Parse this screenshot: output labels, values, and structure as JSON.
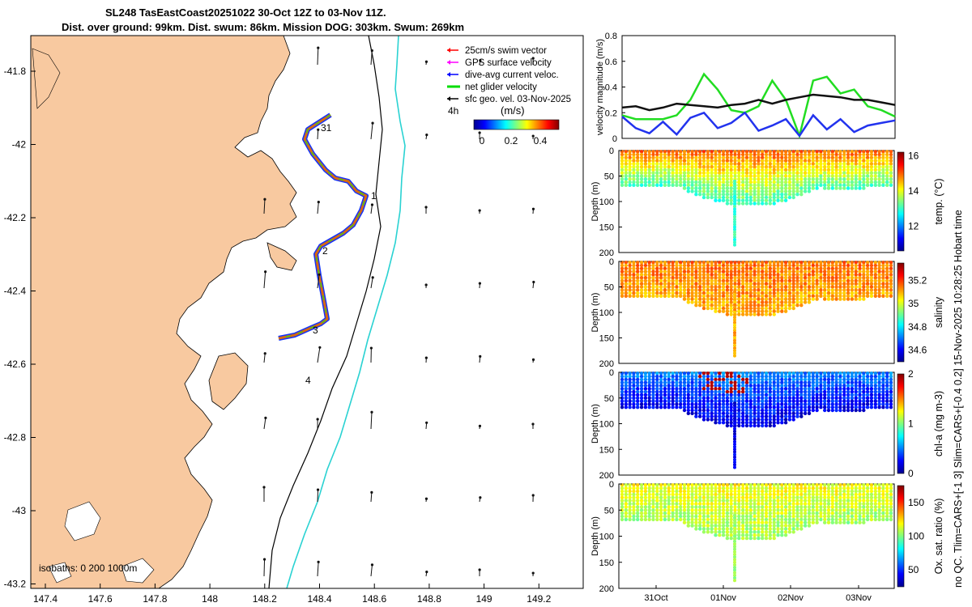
{
  "title_line1": "SL248 TasEastCoast20251022 30-Oct 12Z to 03-Nov 11Z.",
  "title_line2": "Dist. over ground: 99km. Dist. swum: 86km. Mission DOG: 303km. Swum: 269km",
  "side_caption": "no QC. Tlim=CARS+[-1 3] Slim=CARS+[-0.4 0.2] 15-Nov-2025 10:28:25 Hobart time",
  "colors": {
    "land": "#f8c9a0",
    "isobath_0": "#000000",
    "isobath_200": "#000000",
    "isobath_1000": "#2ad2d2",
    "track": "#0033ff",
    "net": "#11dd11"
  },
  "map": {
    "legend": [
      {
        "label": "25cm/s swim vector",
        "color": "#ff0000",
        "kind": "arrow"
      },
      {
        "label": "GPS surface velocity",
        "color": "#ff00ff",
        "kind": "arrow"
      },
      {
        "label": "dive-avg current veloc.",
        "color": "#0000ff",
        "kind": "arrow"
      },
      {
        "label": "net glider velocity",
        "color": "#00dd00",
        "kind": "line"
      },
      {
        "label": "sfc geo. vel. 03-Nov-2025",
        "color": "#000000",
        "kind": "arrow"
      }
    ],
    "interval_label": "4h",
    "colorbar_unit": "(m/s)",
    "colorbar_ticks": [
      "0",
      "0.2",
      "0.4"
    ],
    "day_labels": [
      "31",
      "1",
      "2",
      "3",
      "4"
    ],
    "isobath_label": "isobaths: 0   200  1000m",
    "x_ticks": [
      "147.4",
      "147.6",
      "147.8",
      "148",
      "148.2",
      "148.4",
      "148.6",
      "148.8",
      "149",
      "149.2"
    ],
    "y_ticks": [
      "-41.8",
      "-42",
      "-42.2",
      "-42.4",
      "-42.6",
      "-42.8",
      "-43",
      "-43.2"
    ]
  },
  "chart_data": [
    {
      "type": "line",
      "title": "",
      "ylabel": "velocity magnitude (m/s)",
      "ylim": [
        0,
        0.8
      ],
      "yticks": [
        "0",
        "0.2",
        "0.4",
        "0.6",
        "0.8"
      ],
      "x": [
        0,
        0.05,
        0.1,
        0.15,
        0.2,
        0.25,
        0.3,
        0.35,
        0.4,
        0.45,
        0.5,
        0.55,
        0.6,
        0.65,
        0.7,
        0.75,
        0.8,
        0.85,
        0.9,
        0.95,
        1.0
      ],
      "series": [
        {
          "name": "net glider velocity",
          "color": "#22dd22",
          "values": [
            0.18,
            0.15,
            0.15,
            0.15,
            0.18,
            0.3,
            0.5,
            0.38,
            0.22,
            0.2,
            0.25,
            0.45,
            0.3,
            0.02,
            0.45,
            0.48,
            0.35,
            0.38,
            0.25,
            0.22,
            0.17
          ]
        },
        {
          "name": "dive-avg current",
          "color": "#2233ee",
          "values": [
            0.17,
            0.08,
            0.04,
            0.13,
            0.03,
            0.16,
            0.2,
            0.08,
            0.12,
            0.2,
            0.06,
            0.1,
            0.15,
            0.02,
            0.18,
            0.07,
            0.15,
            0.05,
            0.1,
            0.12,
            0.14
          ]
        },
        {
          "name": "sfc geo. vel.",
          "color": "#111111",
          "values": [
            0.24,
            0.25,
            0.22,
            0.24,
            0.27,
            0.26,
            0.25,
            0.24,
            0.26,
            0.27,
            0.3,
            0.27,
            0.3,
            0.32,
            0.34,
            0.33,
            0.32,
            0.3,
            0.3,
            0.28,
            0.26
          ]
        }
      ]
    },
    {
      "type": "heatmap",
      "ylabel": "Depth (m)",
      "yticks": [
        "0",
        "50",
        "100",
        "150",
        "200"
      ],
      "colorbar_label": "temp. (°C)",
      "colorbar_ticks": [
        "12",
        "14",
        "16"
      ],
      "clim": [
        10.6,
        16.2
      ],
      "surface": 15.0,
      "bottom": 13.0
    },
    {
      "type": "heatmap",
      "ylabel": "Depth (m)",
      "yticks": [
        "0",
        "50",
        "100",
        "150",
        "200"
      ],
      "colorbar_label": "salinity",
      "colorbar_ticks": [
        "34.6",
        "34.8",
        "35",
        "35.2"
      ],
      "clim": [
        34.5,
        35.35
      ],
      "surface": 35.15,
      "bottom": 35.1
    },
    {
      "type": "heatmap",
      "ylabel": "Depth (m)",
      "yticks": [
        "0",
        "50",
        "100",
        "150",
        "200"
      ],
      "colorbar_label": "chl-a (mg m-3)",
      "colorbar_ticks": [
        "0",
        "1",
        "2"
      ],
      "clim": [
        0,
        2
      ],
      "surface": 0.5,
      "bottom": 0.2
    },
    {
      "type": "heatmap",
      "ylabel": "Depth (m)",
      "yticks": [
        "0",
        "50",
        "100",
        "150",
        "200"
      ],
      "colorbar_label": "Ox. sat. ratio (%)",
      "colorbar_ticks": [
        "50",
        "100",
        "150"
      ],
      "clim": [
        25,
        175
      ],
      "surface": 118,
      "bottom": 105,
      "x_ticks": [
        "31Oct",
        "01Nov",
        "02Nov",
        "03Nov"
      ]
    }
  ]
}
